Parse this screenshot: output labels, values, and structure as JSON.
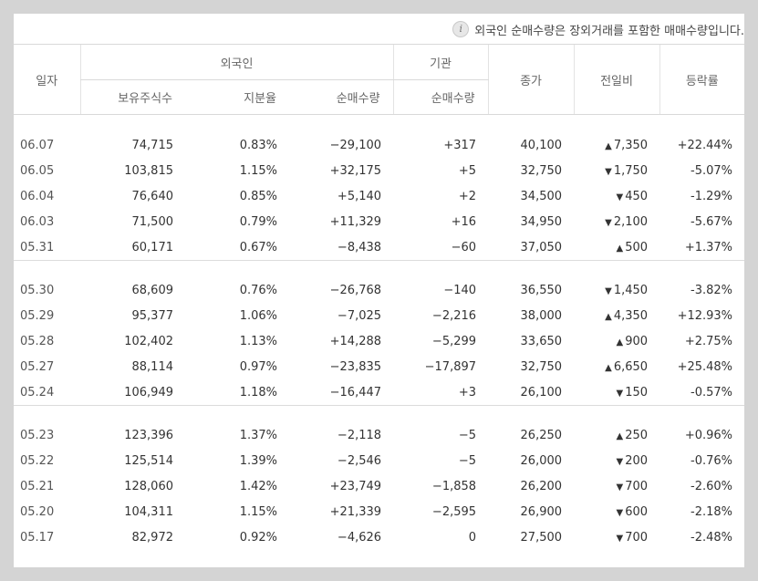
{
  "notice": {
    "icon": "info-icon",
    "text": "외국인 순매수량은 장외거래를 포함한 매매수량입니다."
  },
  "headers": {
    "date": "일자",
    "foreign": "외국인",
    "institution": "기관",
    "close": "종가",
    "change": "전일비",
    "rate": "등락률",
    "holdings": "보유주식수",
    "share_ratio": "지분율",
    "foreign_net": "순매수량",
    "inst_net": "순매수량"
  },
  "colors": {
    "up": "#e12020",
    "down": "#1d4fc4"
  },
  "rows": [
    {
      "date": "06.07",
      "holdings": "74,715",
      "ratio": "0.83%",
      "fnet": "−29,100",
      "fdir": "dn",
      "inet": "+317",
      "idir": "up",
      "close": "40,100",
      "cdir": "up",
      "chg": "7,350",
      "chgdir": "up",
      "rate": "+22.44%"
    },
    {
      "date": "06.05",
      "holdings": "103,815",
      "ratio": "1.15%",
      "fnet": "+32,175",
      "fdir": "up",
      "inet": "+5",
      "idir": "up",
      "close": "32,750",
      "cdir": "dn",
      "chg": "1,750",
      "chgdir": "dn",
      "rate": "-5.07%"
    },
    {
      "date": "06.04",
      "holdings": "76,640",
      "ratio": "0.85%",
      "fnet": "+5,140",
      "fdir": "up",
      "inet": "+2",
      "idir": "up",
      "close": "34,500",
      "cdir": "dn",
      "chg": "450",
      "chgdir": "dn",
      "rate": "-1.29%"
    },
    {
      "date": "06.03",
      "holdings": "71,500",
      "ratio": "0.79%",
      "fnet": "+11,329",
      "fdir": "up",
      "inet": "+16",
      "idir": "up",
      "close": "34,950",
      "cdir": "dn",
      "chg": "2,100",
      "chgdir": "dn",
      "rate": "-5.67%"
    },
    {
      "date": "05.31",
      "holdings": "60,171",
      "ratio": "0.67%",
      "fnet": "−8,438",
      "fdir": "dn",
      "inet": "−60",
      "idir": "dn",
      "close": "37,050",
      "cdir": "up",
      "chg": "500",
      "chgdir": "up",
      "rate": "+1.37%"
    },
    {
      "date": "05.30",
      "holdings": "68,609",
      "ratio": "0.76%",
      "fnet": "−26,768",
      "fdir": "dn",
      "inet": "−140",
      "idir": "dn",
      "close": "36,550",
      "cdir": "dn",
      "chg": "1,450",
      "chgdir": "dn",
      "rate": "-3.82%"
    },
    {
      "date": "05.29",
      "holdings": "95,377",
      "ratio": "1.06%",
      "fnet": "−7,025",
      "fdir": "dn",
      "inet": "−2,216",
      "idir": "dn",
      "close": "38,000",
      "cdir": "up",
      "chg": "4,350",
      "chgdir": "up",
      "rate": "+12.93%"
    },
    {
      "date": "05.28",
      "holdings": "102,402",
      "ratio": "1.13%",
      "fnet": "+14,288",
      "fdir": "up",
      "inet": "−5,299",
      "idir": "dn",
      "close": "33,650",
      "cdir": "up",
      "chg": "900",
      "chgdir": "up",
      "rate": "+2.75%"
    },
    {
      "date": "05.27",
      "holdings": "88,114",
      "ratio": "0.97%",
      "fnet": "−23,835",
      "fdir": "dn",
      "inet": "−17,897",
      "idir": "dn",
      "close": "32,750",
      "cdir": "up",
      "chg": "6,650",
      "chgdir": "up",
      "rate": "+25.48%"
    },
    {
      "date": "05.24",
      "holdings": "106,949",
      "ratio": "1.18%",
      "fnet": "−16,447",
      "fdir": "dn",
      "inet": "+3",
      "idir": "up",
      "close": "26,100",
      "cdir": "dn",
      "chg": "150",
      "chgdir": "dn",
      "rate": "-0.57%"
    },
    {
      "date": "05.23",
      "holdings": "123,396",
      "ratio": "1.37%",
      "fnet": "−2,118",
      "fdir": "dn",
      "inet": "−5",
      "idir": "dn",
      "close": "26,250",
      "cdir": "up",
      "chg": "250",
      "chgdir": "up",
      "rate": "+0.96%"
    },
    {
      "date": "05.22",
      "holdings": "125,514",
      "ratio": "1.39%",
      "fnet": "−2,546",
      "fdir": "dn",
      "inet": "−5",
      "idir": "dn",
      "close": "26,000",
      "cdir": "dn",
      "chg": "200",
      "chgdir": "dn",
      "rate": "-0.76%"
    },
    {
      "date": "05.21",
      "holdings": "128,060",
      "ratio": "1.42%",
      "fnet": "+23,749",
      "fdir": "up",
      "inet": "−1,858",
      "idir": "dn",
      "close": "26,200",
      "cdir": "dn",
      "chg": "700",
      "chgdir": "dn",
      "rate": "-2.60%"
    },
    {
      "date": "05.20",
      "holdings": "104,311",
      "ratio": "1.15%",
      "fnet": "+21,339",
      "fdir": "up",
      "inet": "−2,595",
      "idir": "dn",
      "close": "26,900",
      "cdir": "dn",
      "chg": "600",
      "chgdir": "dn",
      "rate": "-2.18%"
    },
    {
      "date": "05.17",
      "holdings": "82,972",
      "ratio": "0.92%",
      "fnet": "−4,626",
      "fdir": "dn",
      "inet": "0",
      "idir": "zero",
      "close": "27,500",
      "cdir": "dn",
      "chg": "700",
      "chgdir": "dn",
      "rate": "-2.48%"
    }
  ]
}
